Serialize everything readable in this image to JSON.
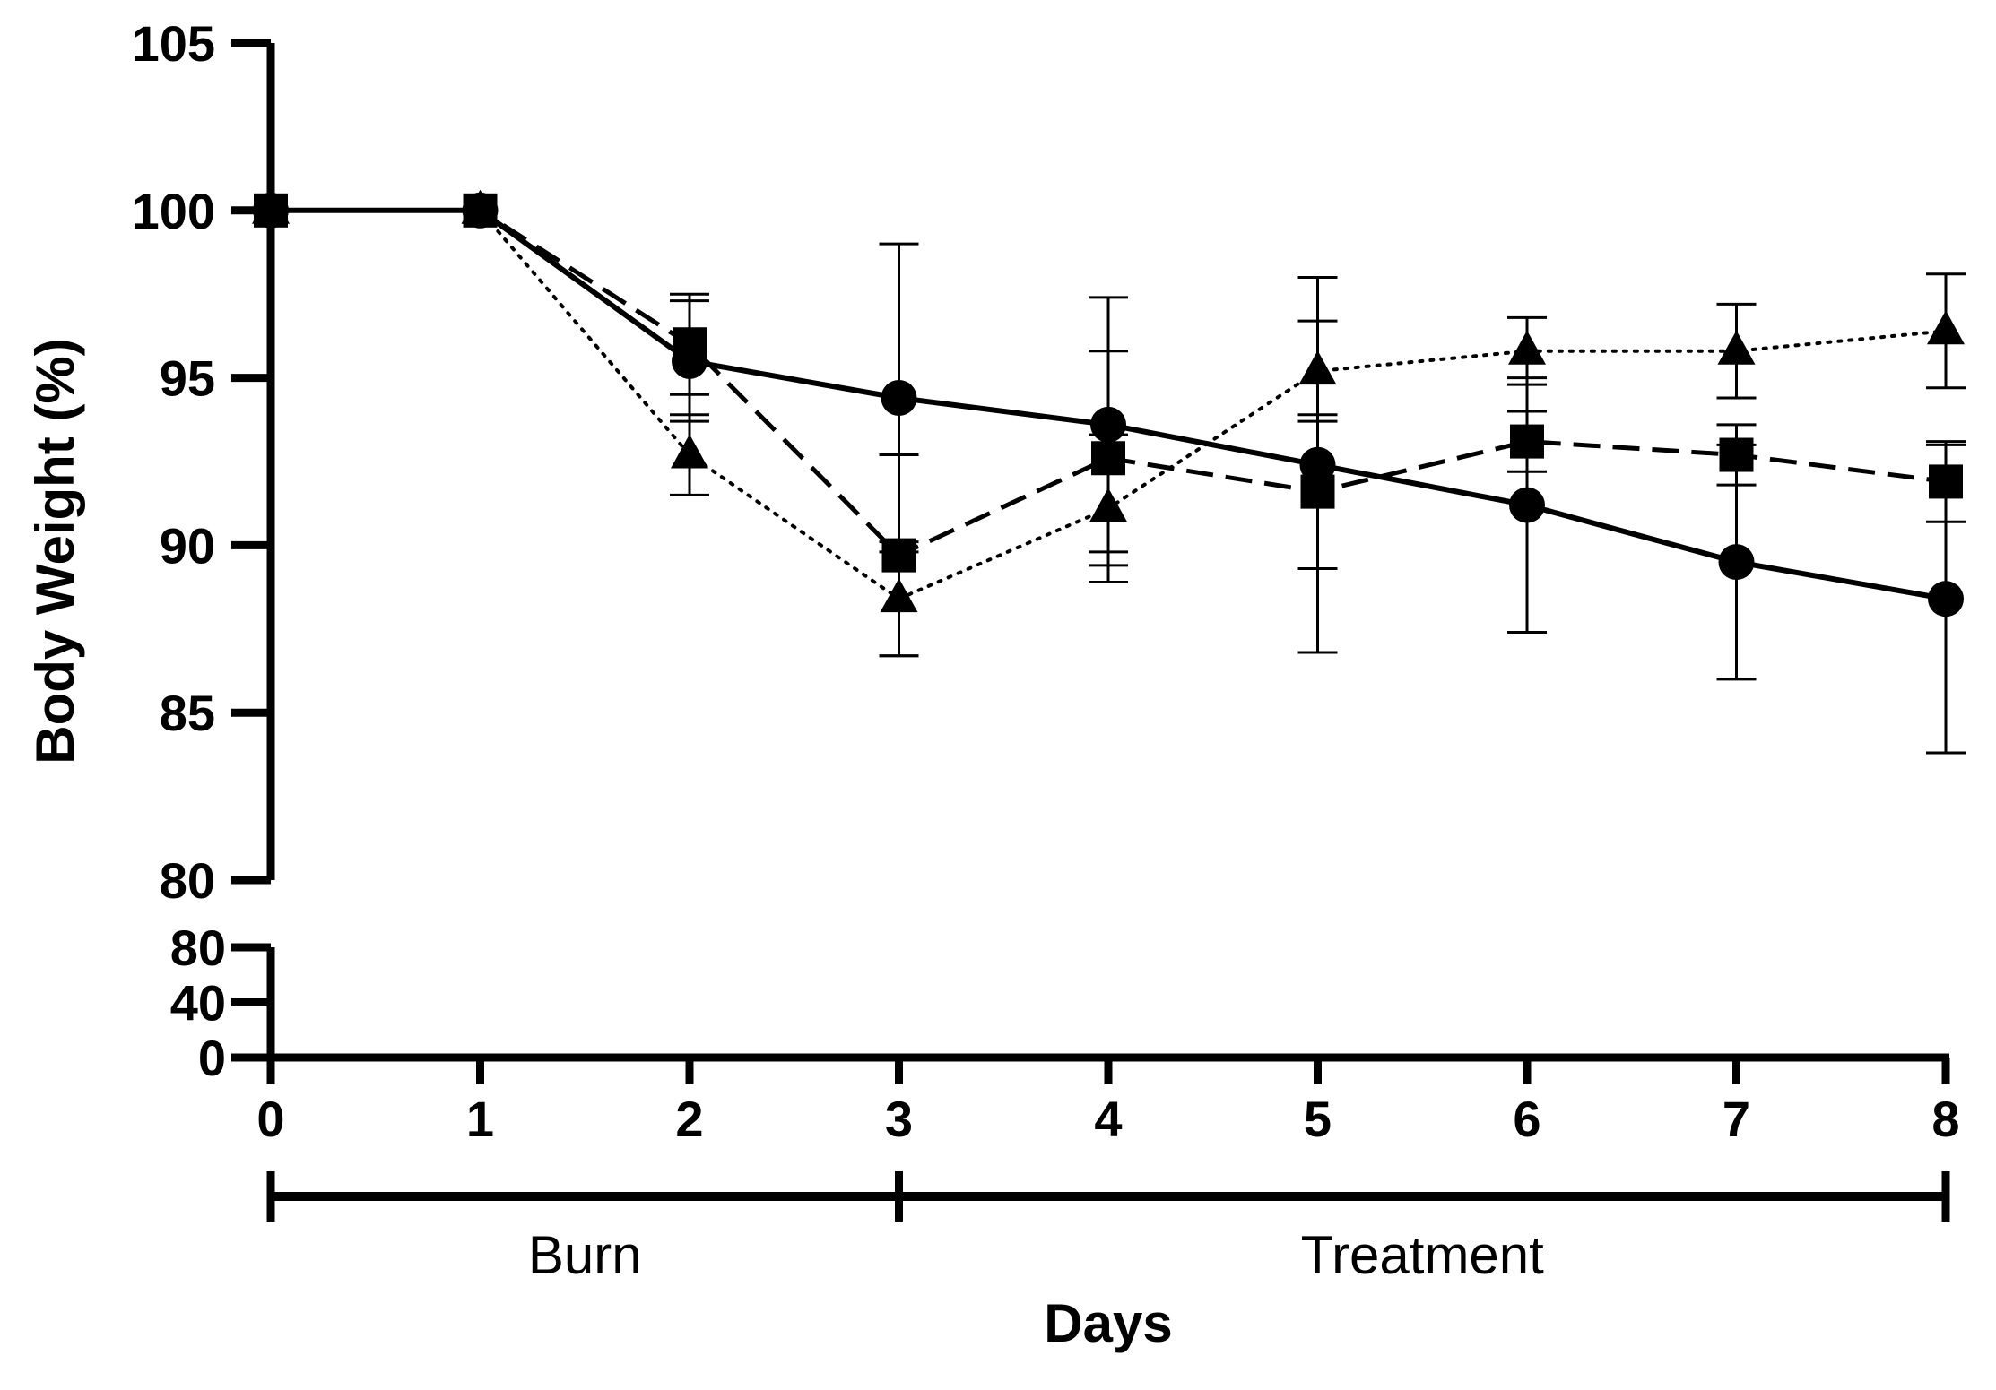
{
  "chart_data": {
    "type": "line",
    "title": "",
    "xlabel": "Days",
    "ylabel": "Body Weight (%)",
    "x": [
      0,
      1,
      2,
      3,
      4,
      5,
      6,
      7,
      8
    ],
    "x_ticks": [
      "0",
      "1",
      "2",
      "3",
      "4",
      "5",
      "6",
      "7",
      "8"
    ],
    "xlim": [
      0,
      8
    ],
    "ylim": [
      80,
      105
    ],
    "y_ticks": [
      "80",
      "85",
      "90",
      "95",
      "100",
      "105"
    ],
    "lower_segment": {
      "ylim": [
        0,
        80
      ],
      "y_ticks": [
        "0",
        "40",
        "80"
      ]
    },
    "axis_break": "y-axis broken between 80 (lower segment) and 80 (upper segment)",
    "grid": false,
    "legend": "none",
    "phases": [
      {
        "label": "Burn",
        "start": 0,
        "end": 3
      },
      {
        "label": "Treatment",
        "start": 3,
        "end": 8
      }
    ],
    "series": [
      {
        "name": "circle-solid",
        "marker": "circle",
        "line_style": "solid",
        "color": "#000000",
        "values": [
          100,
          100,
          95.5,
          94.4,
          93.6,
          92.4,
          91.2,
          89.5,
          88.4
        ],
        "errors": [
          0,
          0,
          1.8,
          4.6,
          3.8,
          5.6,
          3.8,
          3.5,
          4.6
        ]
      },
      {
        "name": "square-dashed",
        "marker": "square",
        "line_style": "dashed",
        "color": "#000000",
        "values": [
          100,
          100,
          96.0,
          89.7,
          92.6,
          91.6,
          93.1,
          92.7,
          91.9
        ],
        "errors": [
          0,
          0,
          1.5,
          3.0,
          3.2,
          2.3,
          0.9,
          0.9,
          1.2
        ]
      },
      {
        "name": "triangle-dotted",
        "marker": "triangle",
        "line_style": "dotted",
        "color": "#000000",
        "values": [
          100,
          100,
          92.7,
          88.4,
          91.1,
          95.2,
          95.8,
          95.8,
          96.4
        ],
        "errors": [
          0,
          0,
          1.2,
          1.7,
          2.2,
          1.5,
          1.0,
          1.4,
          1.7
        ]
      }
    ]
  }
}
